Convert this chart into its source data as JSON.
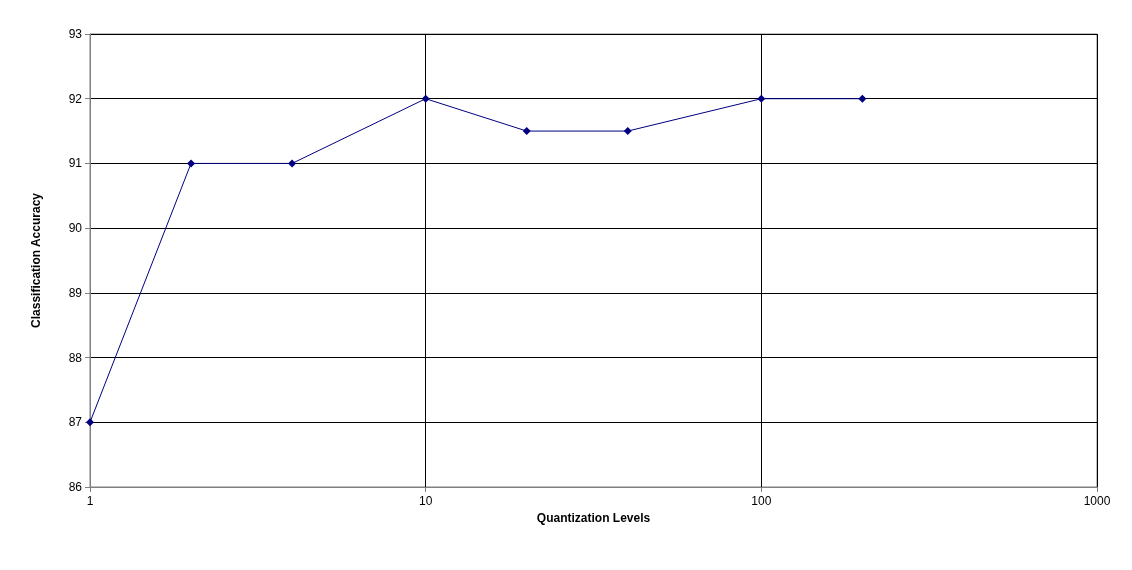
{
  "chart_data": {
    "type": "line",
    "xlabel": "Quantization Levels",
    "ylabel": "Classification Accuracy",
    "x": [
      1,
      2,
      4,
      10,
      20,
      40,
      100,
      200
    ],
    "series": [
      {
        "color": "#000080",
        "values": [
          87,
          91,
          91,
          92,
          91.5,
          91.5,
          92,
          92
        ]
      }
    ],
    "xlim": [
      1,
      1000
    ],
    "xticks": [
      1,
      10,
      100,
      1000
    ],
    "ylim": [
      86,
      93
    ],
    "yticks": [
      86,
      87,
      88,
      89,
      90,
      91,
      92,
      93
    ],
    "log": "x",
    "grid": true,
    "marker": "diamond",
    "line_style": "solid"
  }
}
